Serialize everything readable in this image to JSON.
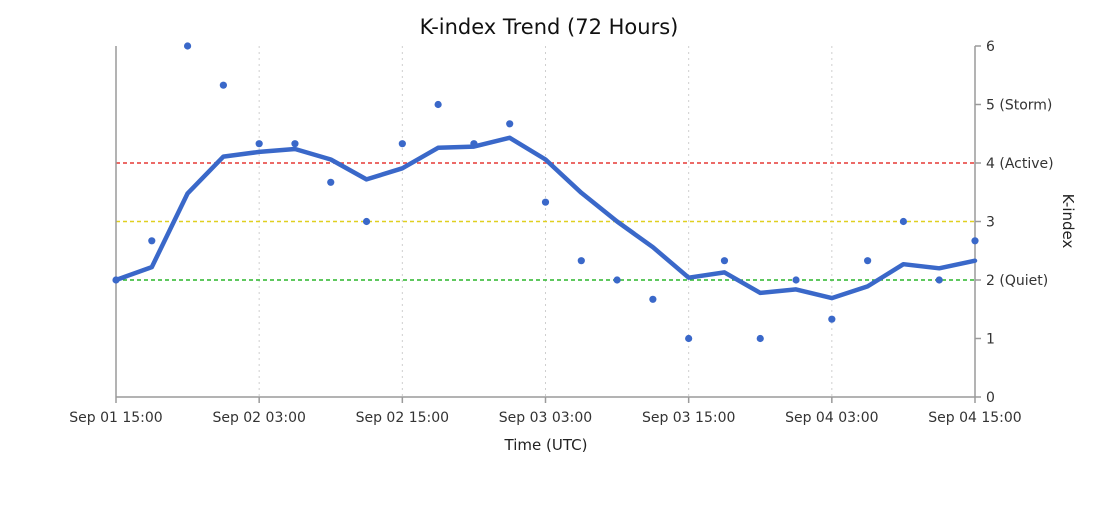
{
  "chart_data": {
    "type": "line",
    "title": "K-index Trend (72 Hours)",
    "xlabel": "Time (UTC)",
    "ylabel": "K-index",
    "ylim": [
      0,
      6
    ],
    "x_tick_labels": [
      "Sep 01 15:00",
      "Sep 02 03:00",
      "Sep 02 15:00",
      "Sep 03 03:00",
      "Sep 03 15:00",
      "Sep 04 03:00",
      "Sep 04 15:00"
    ],
    "x_ticks_hours": [
      0,
      12,
      24,
      36,
      48,
      60,
      72
    ],
    "y_ticks": [
      {
        "value": 0,
        "label": "0"
      },
      {
        "value": 1,
        "label": "1"
      },
      {
        "value": 2,
        "label": "2 (Quiet)"
      },
      {
        "value": 3,
        "label": "3"
      },
      {
        "value": 4,
        "label": "4 (Active)"
      },
      {
        "value": 5,
        "label": "5 (Storm)"
      },
      {
        "value": 6,
        "label": "6"
      }
    ],
    "thresholds": [
      {
        "value": 2,
        "color": "#2ab52a"
      },
      {
        "value": 3,
        "color": "#e0d020"
      },
      {
        "value": 4,
        "color": "#e53935"
      }
    ],
    "grid": "vertical dotted",
    "series": [
      {
        "kind": "scatter",
        "color": "#3a68c9",
        "x_hours": [
          0,
          3,
          6,
          9,
          12,
          15,
          18,
          21,
          24,
          27,
          30,
          33,
          36,
          39,
          42,
          45,
          48,
          51,
          54,
          57,
          60,
          63,
          66,
          69,
          72
        ],
        "values": [
          2,
          2.67,
          6,
          5.33,
          4.33,
          4.33,
          3.67,
          3,
          4.33,
          5,
          4.33,
          4.67,
          3.33,
          2.33,
          2,
          1.67,
          1,
          2.33,
          1,
          2,
          1.33,
          2.33,
          3,
          2,
          2.67
        ]
      },
      {
        "kind": "line",
        "color": "#3a68c9",
        "x_hours": [
          0,
          3,
          6,
          9,
          12,
          15,
          18,
          21,
          24,
          27,
          30,
          33,
          36,
          39,
          42,
          45,
          48,
          51,
          54,
          57,
          60,
          63,
          66,
          69,
          72
        ],
        "values": [
          2.0,
          2.22,
          3.48,
          4.11,
          4.19,
          4.24,
          4.06,
          3.72,
          3.91,
          4.26,
          4.28,
          4.43,
          4.06,
          3.49,
          3.0,
          2.56,
          2.04,
          2.13,
          1.78,
          1.84,
          1.69,
          1.89,
          2.27,
          2.2,
          2.33
        ]
      }
    ]
  }
}
